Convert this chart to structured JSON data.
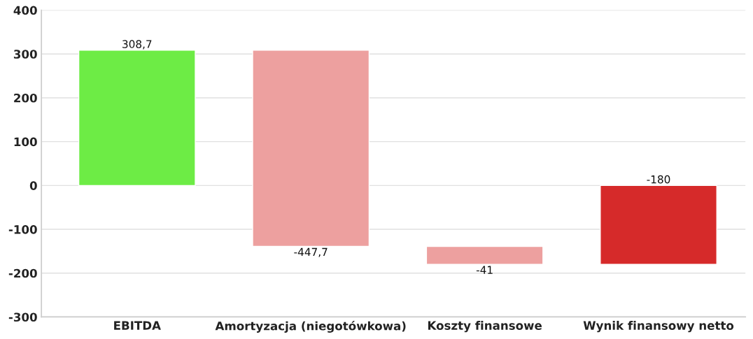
{
  "chart_data": {
    "type": "bar",
    "categories": [
      "EBITDA",
      "Amortyzacja (niegotówkowa)",
      "Koszty finansowe",
      "Wynik finansowy netto"
    ],
    "values": [
      308.7,
      -447.7,
      -41,
      -180
    ],
    "base": [
      0,
      308.7,
      -139,
      0
    ],
    "colors": [
      "#6dec45",
      "#eda09f",
      "#eda09f",
      "#d62a2a"
    ],
    "value_labels": [
      "308,7",
      "-447,7",
      "-41",
      "-180"
    ],
    "ylim": [
      -300,
      400
    ],
    "yticks": [
      -300,
      -200,
      -100,
      0,
      100,
      200,
      300,
      400
    ],
    "grid": "y",
    "legend": false
  }
}
